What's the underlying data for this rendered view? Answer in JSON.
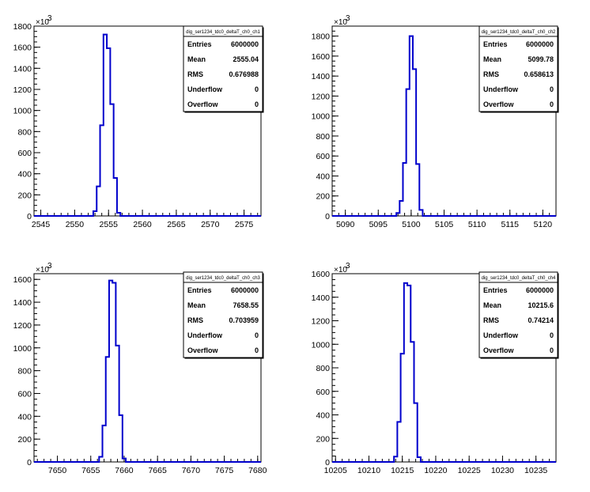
{
  "chart_data": [
    {
      "type": "histogram",
      "exponent_label": "×10",
      "exponent_power": "3",
      "xlim": [
        2544,
        2577.5
      ],
      "ylim": [
        0,
        1800
      ],
      "xticks": [
        2545,
        2550,
        2555,
        2560,
        2565,
        2570,
        2575
      ],
      "yticks": [
        0,
        200,
        400,
        600,
        800,
        1000,
        1200,
        1400,
        1600,
        1800
      ],
      "ytick_labels": [
        "0",
        "200",
        "400",
        "600",
        "800",
        "1000",
        "1200",
        "1400",
        "1600",
        "1800"
      ],
      "bins": {
        "edges": [
          2552.75,
          2553.25,
          2553.75,
          2554.25,
          2554.75,
          2555.25,
          2555.75,
          2556.25,
          2556.75
        ],
        "values": [
          45,
          280,
          860,
          1720,
          1590,
          1060,
          360,
          30
        ]
      },
      "stats": {
        "title": "dig_ser1234_tdc0_deltaT_ch0_ch1",
        "rows": [
          {
            "label": "Entries",
            "value": "6000000"
          },
          {
            "label": "Mean",
            "value": "2555.04"
          },
          {
            "label": "RMS",
            "value": "0.676988"
          },
          {
            "label": "Underflow",
            "value": "0"
          },
          {
            "label": "Overflow",
            "value": "0"
          }
        ]
      }
    },
    {
      "type": "histogram",
      "exponent_label": "×10",
      "exponent_power": "3",
      "xlim": [
        5088,
        5122
      ],
      "ylim": [
        0,
        1900
      ],
      "xticks": [
        5090,
        5095,
        5100,
        5105,
        5110,
        5115,
        5120
      ],
      "yticks": [
        0,
        200,
        400,
        600,
        800,
        1000,
        1200,
        1400,
        1600,
        1800
      ],
      "ytick_labels": [
        "0",
        "200",
        "400",
        "600",
        "800",
        "1000",
        "1200",
        "1400",
        "1600",
        "1800"
      ],
      "bins": {
        "edges": [
          5097.75,
          5098.25,
          5098.75,
          5099.25,
          5099.75,
          5100.25,
          5100.75,
          5101.25,
          5101.75
        ],
        "values": [
          30,
          150,
          530,
          1270,
          1800,
          1470,
          520,
          60
        ]
      },
      "stats": {
        "title": "dig_ser1234_tdc0_deltaT_ch0_ch2",
        "rows": [
          {
            "label": "Entries",
            "value": "6000000"
          },
          {
            "label": "Mean",
            "value": "5099.78"
          },
          {
            "label": "RMS",
            "value": "0.658613"
          },
          {
            "label": "Underflow",
            "value": "0"
          },
          {
            "label": "Overflow",
            "value": "0"
          }
        ]
      }
    },
    {
      "type": "histogram",
      "exponent_label": "×10",
      "exponent_power": "3",
      "xlim": [
        7646.5,
        7680.5
      ],
      "ylim": [
        0,
        1650
      ],
      "xticks": [
        7650,
        7655,
        7660,
        7665,
        7670,
        7675,
        7680
      ],
      "yticks": [
        0,
        200,
        400,
        600,
        800,
        1000,
        1200,
        1400,
        1600
      ],
      "ytick_labels": [
        "0",
        "200",
        "400",
        "600",
        "800",
        "1000",
        "1200",
        "1400",
        "1600"
      ],
      "bins": {
        "edges": [
          7656.25,
          7656.75,
          7657.25,
          7657.75,
          7658.25,
          7658.75,
          7659.25,
          7659.75,
          7660.25
        ],
        "values": [
          45,
          320,
          920,
          1590,
          1570,
          1020,
          410,
          30
        ]
      },
      "stats": {
        "title": "dig_ser1234_tdc0_deltaT_ch0_ch3",
        "rows": [
          {
            "label": "Entries",
            "value": "6000000"
          },
          {
            "label": "Mean",
            "value": "7658.55"
          },
          {
            "label": "RMS",
            "value": "0.703959"
          },
          {
            "label": "Underflow",
            "value": "0"
          },
          {
            "label": "Overflow",
            "value": "0"
          }
        ]
      }
    },
    {
      "type": "histogram",
      "exponent_label": "×10",
      "exponent_power": "3",
      "xlim": [
        10204.5,
        10238
      ],
      "ylim": [
        0,
        1600
      ],
      "xticks": [
        10205,
        10210,
        10215,
        10220,
        10225,
        10230,
        10235
      ],
      "yticks": [
        0,
        200,
        400,
        600,
        800,
        1000,
        1200,
        1400,
        1600
      ],
      "ytick_labels": [
        "0",
        "200",
        "400",
        "600",
        "800",
        "1000",
        "1200",
        "1400",
        "1600"
      ],
      "bins": {
        "edges": [
          10213.75,
          10214.25,
          10214.75,
          10215.25,
          10215.75,
          10216.25,
          10216.75,
          10217.25,
          10217.75
        ],
        "values": [
          45,
          340,
          920,
          1520,
          1500,
          1020,
          500,
          40
        ]
      },
      "stats": {
        "title": "dig_ser1234_tdc0_deltaT_ch0_ch4",
        "rows": [
          {
            "label": "Entries",
            "value": "6000000"
          },
          {
            "label": "Mean",
            "value": "10215.6"
          },
          {
            "label": "RMS",
            "value": "0.74214"
          },
          {
            "label": "Underflow",
            "value": "0"
          },
          {
            "label": "Overflow",
            "value": "0"
          }
        ]
      }
    }
  ],
  "colors": {
    "histogram_line": "#0000cc",
    "axis": "#000000",
    "background": "#ffffff"
  }
}
